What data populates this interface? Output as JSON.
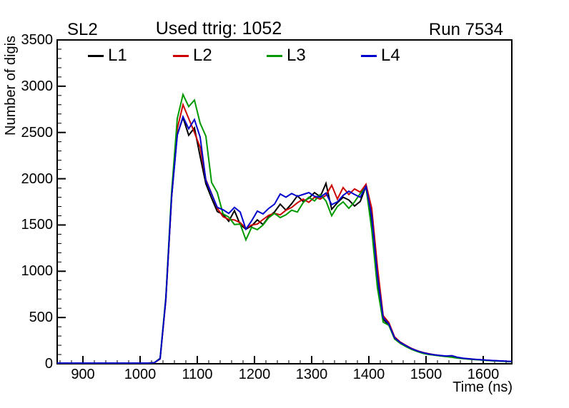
{
  "header": {
    "left_title": "SL2",
    "center_title": "Used ttrig: 1052",
    "right_title": "Run 7534"
  },
  "chart_data": {
    "type": "line",
    "title": "Used ttrig: 1052",
    "subtitle_left": "SL2",
    "subtitle_right": "Run 7534",
    "xlabel": "Time (ns)",
    "ylabel": "Number of digis",
    "xlim": [
      855,
      1650
    ],
    "ylim": [
      0,
      3500
    ],
    "x_ticks": [
      900,
      1000,
      1100,
      1200,
      1300,
      1400,
      1500,
      1600
    ],
    "y_ticks": [
      0,
      500,
      1000,
      1500,
      2000,
      2500,
      3000,
      3500
    ],
    "x_minor_step": 20,
    "y_minor_step": 100,
    "grid": false,
    "legend_position": "top-inside",
    "x": [
      865,
      875,
      885,
      895,
      905,
      915,
      925,
      935,
      945,
      955,
      965,
      975,
      985,
      995,
      1005,
      1015,
      1025,
      1035,
      1045,
      1055,
      1065,
      1075,
      1085,
      1095,
      1105,
      1115,
      1125,
      1135,
      1145,
      1155,
      1165,
      1175,
      1185,
      1195,
      1205,
      1215,
      1225,
      1235,
      1245,
      1255,
      1265,
      1275,
      1285,
      1295,
      1305,
      1315,
      1325,
      1335,
      1345,
      1355,
      1365,
      1375,
      1385,
      1395,
      1405,
      1415,
      1425,
      1435,
      1445,
      1455,
      1465,
      1475,
      1485,
      1495,
      1505,
      1515,
      1525,
      1535,
      1545,
      1555,
      1565,
      1575,
      1585,
      1595,
      1605,
      1615,
      1625,
      1635,
      1645
    ],
    "series": [
      {
        "name": "L1",
        "color": "#000000",
        "values": [
          8,
          8,
          8,
          8,
          8,
          8,
          8,
          8,
          8,
          8,
          8,
          8,
          8,
          8,
          8,
          8,
          12,
          55,
          700,
          1800,
          2480,
          2660,
          2470,
          2550,
          2240,
          1945,
          1790,
          1645,
          1615,
          1540,
          1655,
          1505,
          1455,
          1490,
          1555,
          1505,
          1590,
          1640,
          1725,
          1660,
          1730,
          1815,
          1755,
          1790,
          1850,
          1805,
          1950,
          1670,
          1740,
          1800,
          1770,
          1705,
          1755,
          1920,
          1550,
          900,
          480,
          420,
          275,
          225,
          190,
          160,
          135,
          118,
          105,
          95,
          87,
          80,
          72,
          64,
          57,
          51,
          46,
          42,
          38,
          34,
          31,
          28,
          24
        ]
      },
      {
        "name": "L2",
        "color": "#cc0000",
        "values": [
          8,
          8,
          8,
          8,
          8,
          8,
          8,
          8,
          8,
          8,
          8,
          8,
          8,
          8,
          8,
          8,
          12,
          52,
          690,
          1790,
          2540,
          2800,
          2650,
          2500,
          2340,
          1990,
          1840,
          1680,
          1590,
          1560,
          1555,
          1525,
          1465,
          1500,
          1510,
          1560,
          1605,
          1625,
          1610,
          1660,
          1690,
          1740,
          1780,
          1745,
          1800,
          1780,
          1820,
          1930,
          1780,
          1905,
          1830,
          1890,
          1855,
          1940,
          1680,
          1050,
          520,
          445,
          290,
          235,
          198,
          165,
          140,
          122,
          108,
          97,
          89,
          82,
          75,
          66,
          59,
          53,
          48,
          43,
          39,
          35,
          32,
          29,
          25
        ]
      },
      {
        "name": "L3",
        "color": "#009900",
        "values": [
          8,
          8,
          8,
          8,
          8,
          8,
          8,
          8,
          8,
          8,
          8,
          8,
          8,
          8,
          8,
          8,
          12,
          60,
          720,
          1850,
          2650,
          2910,
          2780,
          2850,
          2600,
          2460,
          1960,
          1850,
          1620,
          1585,
          1505,
          1510,
          1340,
          1475,
          1450,
          1500,
          1580,
          1625,
          1580,
          1610,
          1660,
          1640,
          1740,
          1800,
          1760,
          1830,
          1760,
          1600,
          1700,
          1750,
          1680,
          1750,
          1840,
          1910,
          1450,
          820,
          450,
          415,
          268,
          220,
          185,
          155,
          132,
          112,
          100,
          92,
          85,
          78,
          70,
          62,
          56,
          50,
          45,
          41,
          37,
          33,
          30,
          27,
          23
        ]
      },
      {
        "name": "L4",
        "color": "#0000cc",
        "values": [
          8,
          8,
          8,
          8,
          8,
          8,
          8,
          8,
          8,
          8,
          8,
          8,
          8,
          8,
          8,
          8,
          12,
          55,
          700,
          1800,
          2470,
          2670,
          2540,
          2640,
          2450,
          1980,
          1835,
          1690,
          1665,
          1625,
          1690,
          1640,
          1455,
          1545,
          1650,
          1620,
          1680,
          1725,
          1835,
          1800,
          1840,
          1810,
          1830,
          1850,
          1810,
          1800,
          1845,
          1720,
          1750,
          1820,
          1865,
          1830,
          1800,
          1915,
          1600,
          950,
          500,
          430,
          280,
          230,
          195,
          162,
          138,
          120,
          106,
          96,
          90,
          84,
          88,
          70,
          60,
          54,
          48,
          44,
          40,
          36,
          33,
          30,
          26
        ]
      }
    ]
  }
}
